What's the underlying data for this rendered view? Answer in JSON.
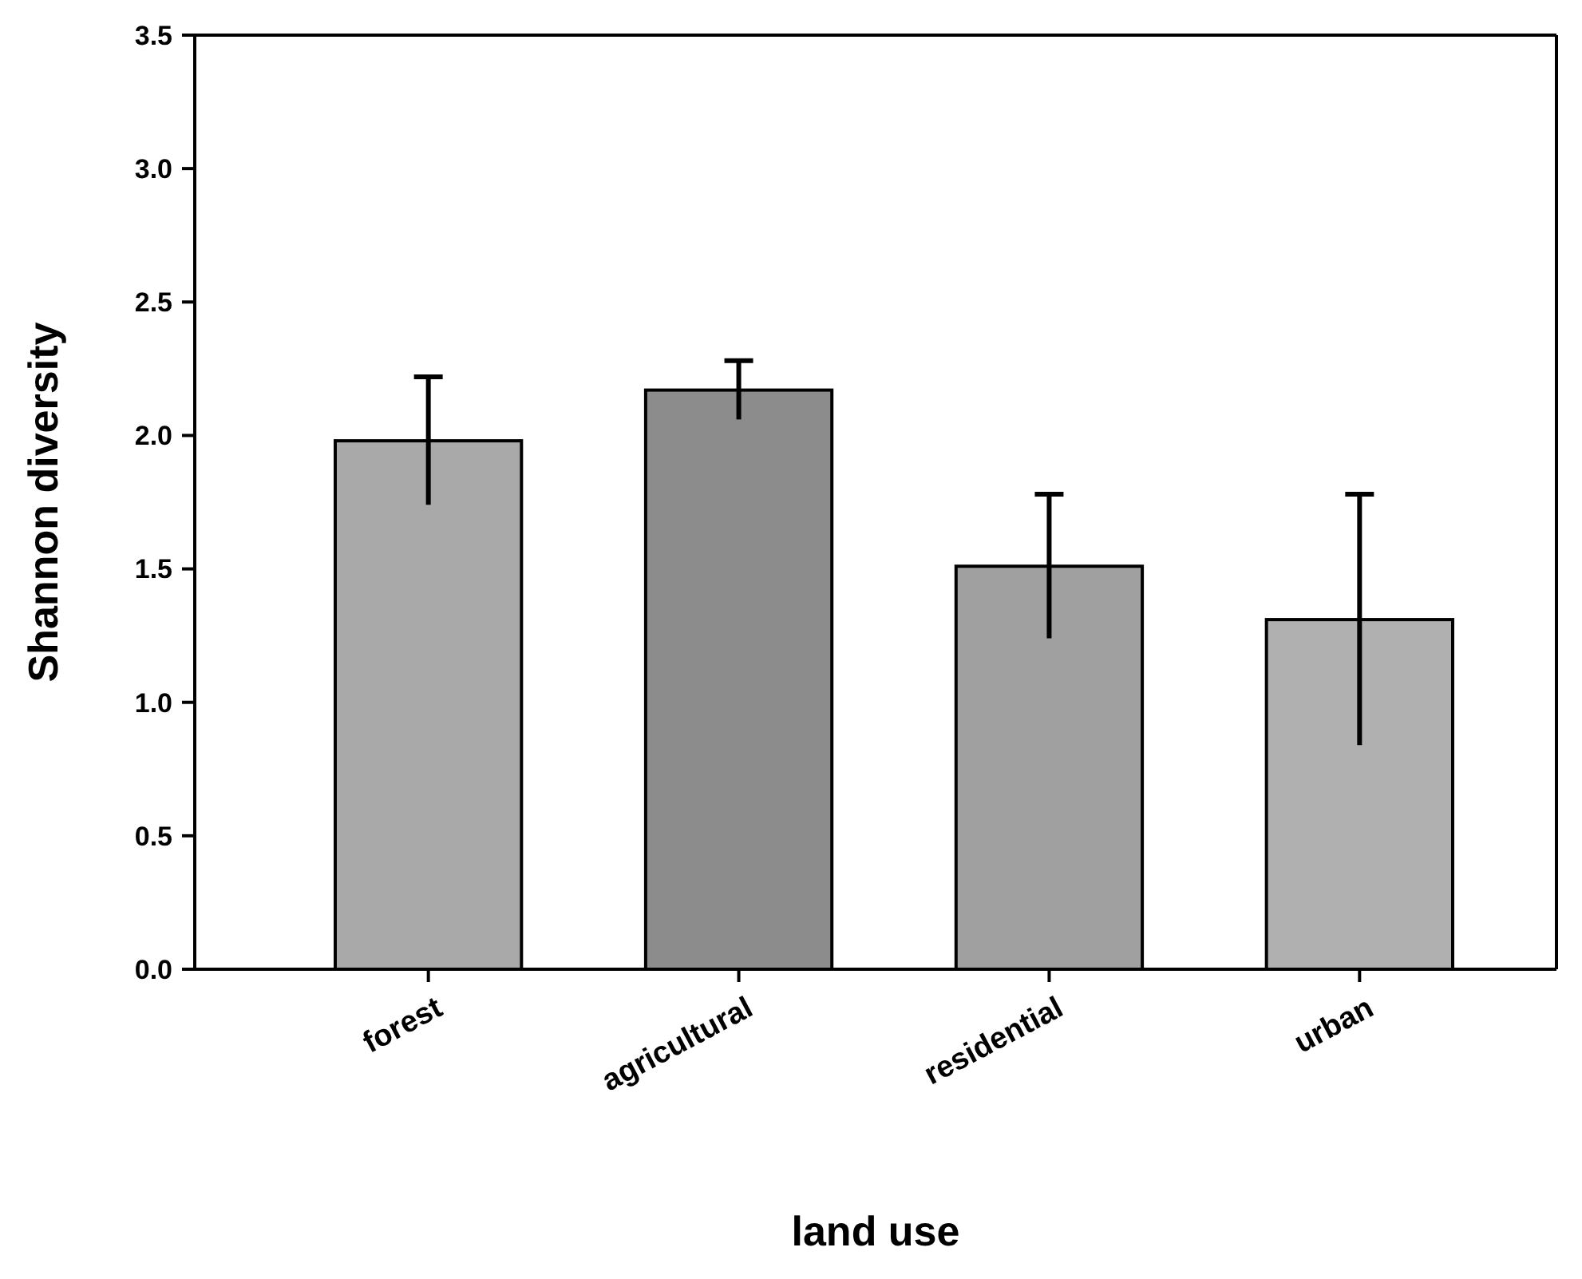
{
  "chart_data": {
    "type": "bar",
    "xlabel": "land use",
    "ylabel": "Shannon diversity",
    "categories": [
      "forest",
      "agricultural",
      "residential",
      "urban"
    ],
    "values": [
      1.98,
      2.17,
      1.51,
      1.31
    ],
    "errors": [
      0.24,
      0.11,
      0.27,
      0.47
    ],
    "colors": [
      "#a9a9a9",
      "#8c8c8c",
      "#a0a0a0",
      "#b0b0b0"
    ],
    "ylim": [
      0,
      3.5
    ],
    "yticks": [
      {
        "value": 0,
        "label": "0.0"
      },
      {
        "value": 0.5,
        "label": "0.5"
      },
      {
        "value": 1,
        "label": "1.0"
      },
      {
        "value": 1.5,
        "label": "1.5"
      },
      {
        "value": 2,
        "label": "2.0"
      },
      {
        "value": 2.5,
        "label": "2.5"
      },
      {
        "value": 3,
        "label": "3.0"
      },
      {
        "value": 3.5,
        "label": "3.5"
      }
    ],
    "grid": false
  }
}
